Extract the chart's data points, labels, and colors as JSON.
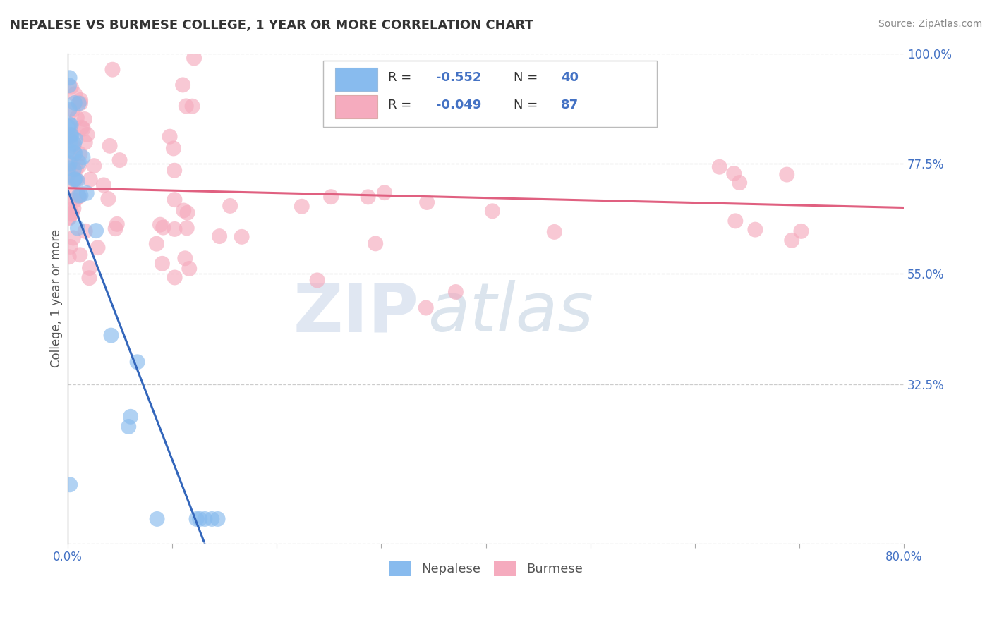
{
  "title": "NEPALESE VS BURMESE COLLEGE, 1 YEAR OR MORE CORRELATION CHART",
  "source_text": "Source: ZipAtlas.com",
  "ylabel": "College, 1 year or more",
  "xlim": [
    0.0,
    0.8
  ],
  "ylim": [
    0.0,
    1.0
  ],
  "x_ticks": [
    0.0,
    0.1,
    0.2,
    0.3,
    0.4,
    0.5,
    0.6,
    0.7,
    0.8
  ],
  "x_tick_labels": [
    "0.0%",
    "",
    "",
    "",
    "",
    "",
    "",
    "",
    "80.0%"
  ],
  "y_ticks": [
    0.0,
    0.325,
    0.55,
    0.775,
    1.0
  ],
  "y_tick_labels": [
    "",
    "32.5%",
    "55.0%",
    "77.5%",
    "100.0%"
  ],
  "nepalese_color": "#88BBEE",
  "burmese_color": "#F5ABBE",
  "nepalese_line_color": "#3366BB",
  "burmese_line_color": "#E06080",
  "background_color": "#FFFFFF",
  "grid_color": "#CCCCCC",
  "nepalese_R": -0.552,
  "nepalese_N": 40,
  "burmese_R": -0.049,
  "burmese_N": 87,
  "burmese_line_start_y": 0.725,
  "burmese_line_end_y": 0.685,
  "nepalese_line_start_y": 0.72,
  "nepalese_line_slope": -5.5
}
